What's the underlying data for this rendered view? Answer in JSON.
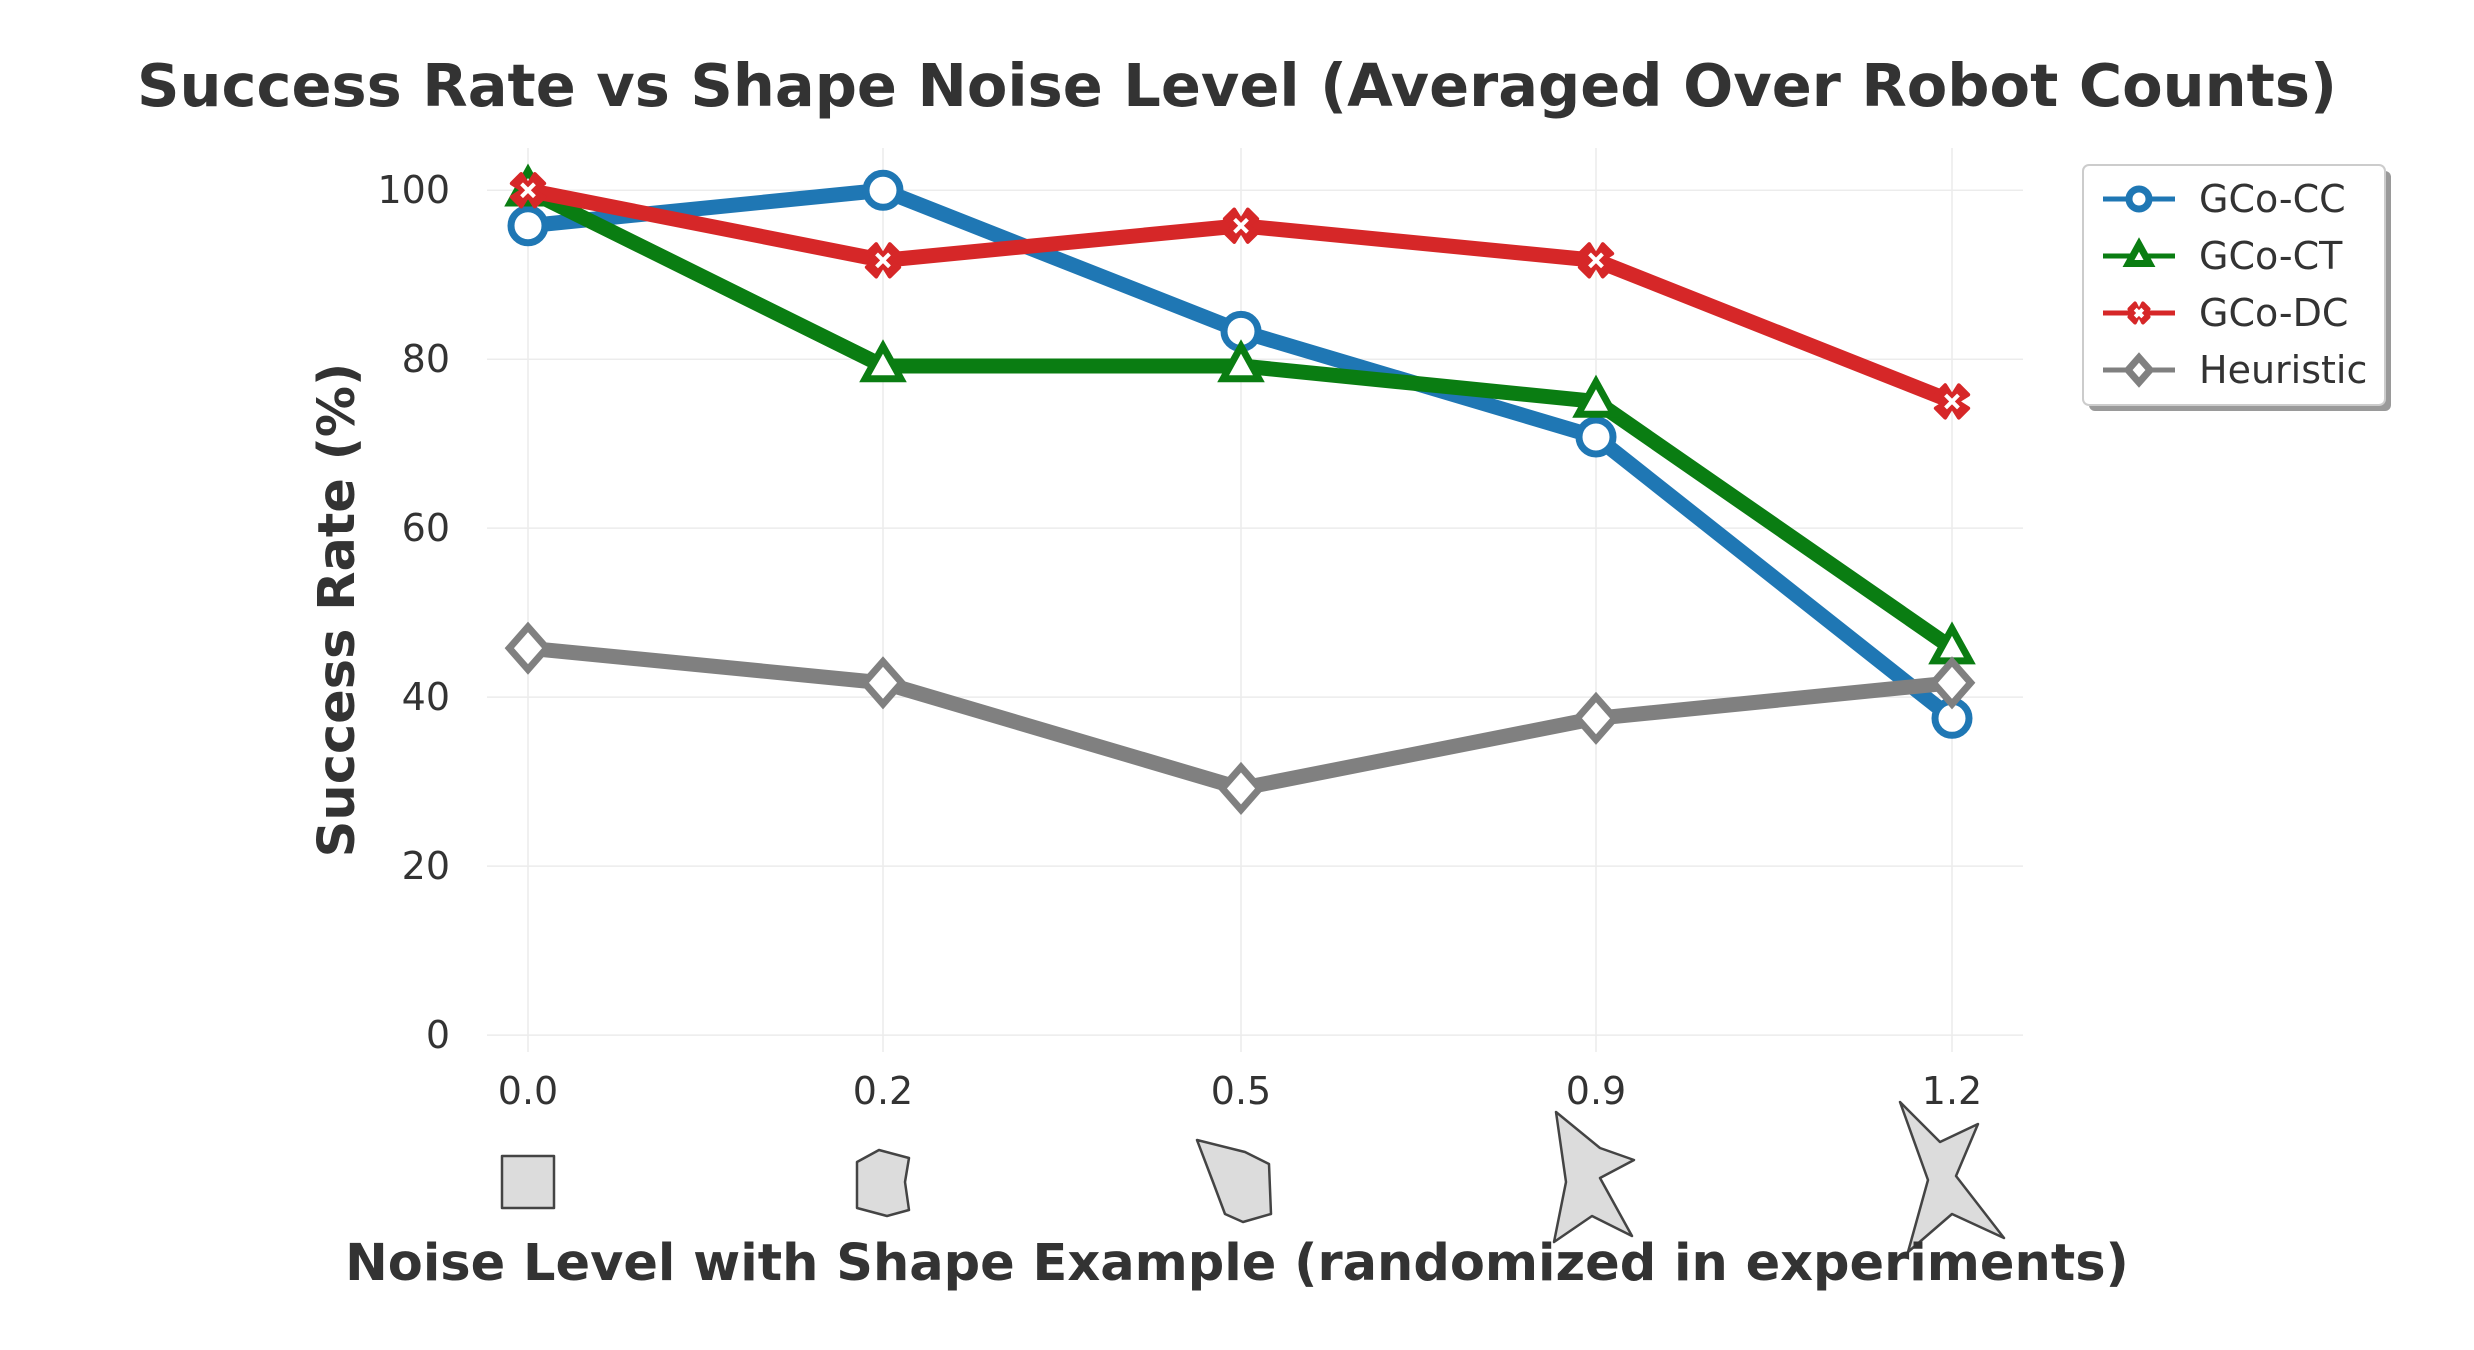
{
  "chart_data": {
    "type": "line",
    "title": "Success Rate vs Shape Noise Level (Averaged Over Robot Counts)",
    "xlabel": "Noise Level with Shape Example (randomized in experiments)",
    "ylabel": "Success Rate (%)",
    "categories": [
      "0.0",
      "0.2",
      "0.5",
      "0.9",
      "1.2"
    ],
    "ylim": [
      -2,
      105
    ],
    "yticks": [
      0,
      20,
      40,
      60,
      80,
      100
    ],
    "grid": true,
    "legend_position": "top-right",
    "series": [
      {
        "name": "GCo-CC",
        "color": "#1f77b4",
        "marker": "circle",
        "values": [
          95.8,
          100,
          83.3,
          70.8,
          37.5
        ]
      },
      {
        "name": "GCo-CT",
        "color": "#0a7d12",
        "marker": "triangle",
        "values": [
          100,
          79.2,
          79.2,
          75.0,
          45.8
        ]
      },
      {
        "name": "GCo-DC",
        "color": "#d62728",
        "marker": "x",
        "values": [
          100,
          91.7,
          95.8,
          91.7,
          75.0
        ]
      },
      {
        "name": "Heuristic",
        "color": "#808080",
        "marker": "diamond",
        "values": [
          45.8,
          41.7,
          29.2,
          37.5,
          41.7
        ]
      }
    ],
    "shape_examples": [
      "square",
      "slight-noise",
      "moderate-noise",
      "star-noise",
      "high-star-noise"
    ]
  }
}
